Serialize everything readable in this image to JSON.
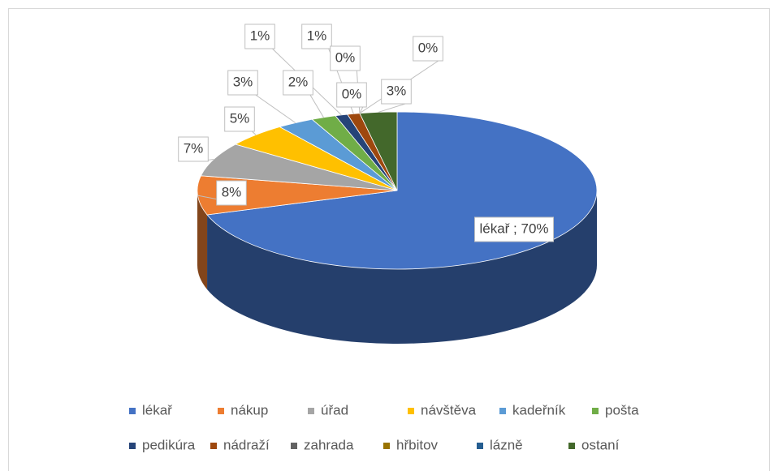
{
  "chart_data": {
    "type": "pie",
    "categories": [
      "lékař",
      "nákup",
      "úřad",
      "návštěva",
      "kadeřník",
      "pošta",
      "pedikúra",
      "nádraží",
      "zahrada",
      "hřbitov",
      "lázně",
      "ostaní"
    ],
    "values": [
      70,
      8,
      7,
      5,
      3,
      2,
      1,
      1,
      0,
      0,
      0,
      3
    ],
    "value_labels": [
      "lékař ; 70%",
      "8%",
      "7%",
      "5%",
      "3%",
      "2%",
      "1%",
      "1%",
      "0%",
      "0%",
      "0%",
      "3%"
    ],
    "colors": [
      "#4472c4",
      "#ed7d31",
      "#a5a5a5",
      "#ffc000",
      "#5b9bd5",
      "#70ad47",
      "#264478",
      "#9e480e",
      "#636363",
      "#997300",
      "#255e91",
      "#43682b"
    ],
    "legend": "bottom"
  }
}
